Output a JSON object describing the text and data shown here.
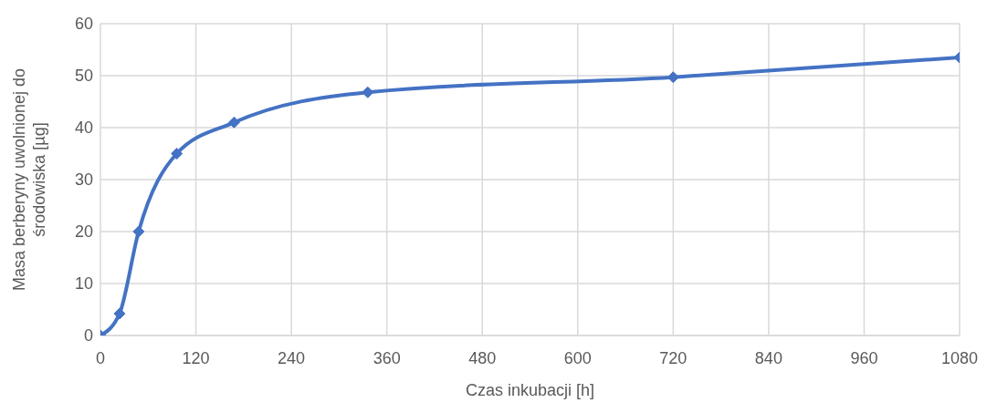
{
  "chart_data": {
    "type": "line",
    "xlabel": "Czas inkubacji [h]",
    "ylabel": "Masa berberyny uwolnionej do środowiska [µg]",
    "x": [
      0,
      24,
      48,
      96,
      168,
      336,
      720,
      1080
    ],
    "series": [
      {
        "color": "#4472c4",
        "values": [
          0,
          4.2,
          20,
          35,
          41,
          46.8,
          49.7,
          53.5
        ]
      }
    ],
    "xlim": [
      0,
      1080
    ],
    "xticks": [
      0,
      120,
      240,
      360,
      480,
      600,
      720,
      840,
      960,
      1080
    ],
    "ylim": [
      0,
      60
    ],
    "yticks": [
      0,
      10,
      20,
      30,
      40,
      50,
      60
    ],
    "grid": true,
    "marker": "diamond",
    "line_style": "solid"
  }
}
